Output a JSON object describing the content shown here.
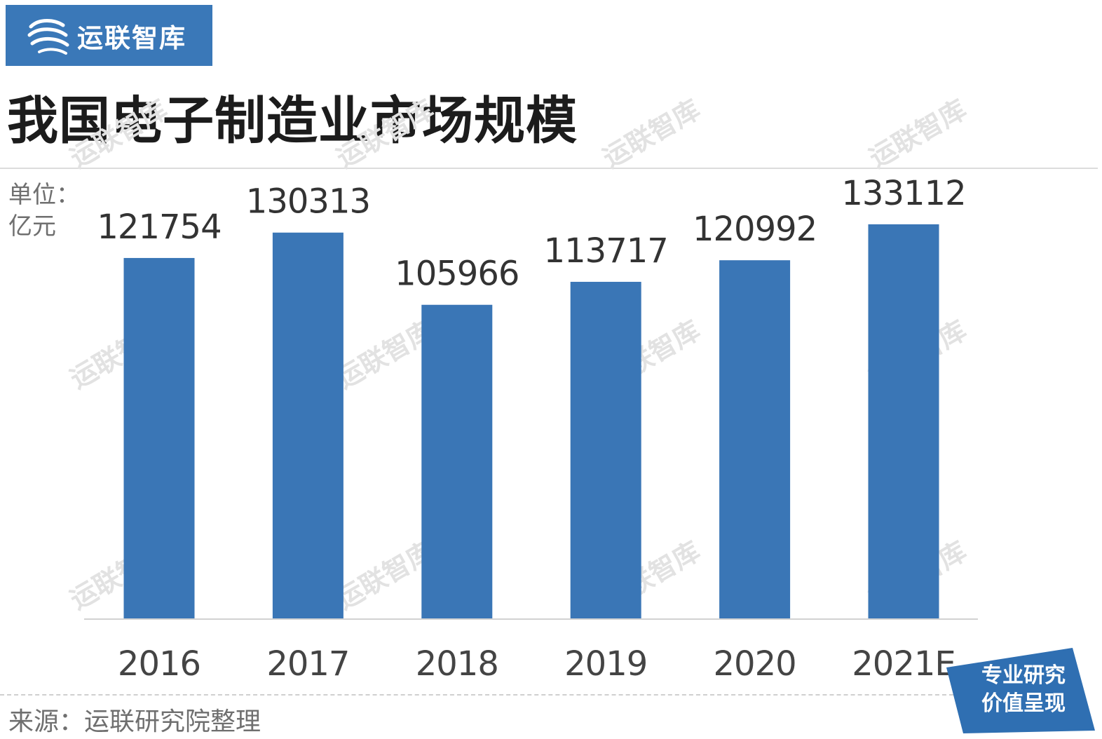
{
  "brand": {
    "name": "运联智库",
    "logo_icon": "swirl-logo-icon",
    "color": "#3a78b8"
  },
  "title": "我国电子制造业市场规模",
  "unit_label": "单位：亿元",
  "source_text": "来源：运联研究院整理",
  "watermark_text": "运联智库",
  "badge": {
    "line1": "专业研究",
    "line2": "价值呈现",
    "color": "#2f6fb2"
  },
  "chart_data": {
    "type": "bar",
    "title": "我国电子制造业市场规模",
    "categories": [
      "2016",
      "2017",
      "2018",
      "2019",
      "2020",
      "2021E"
    ],
    "series": [
      {
        "values": [
          121754,
          130313,
          105966,
          113717,
          120992,
          133112
        ]
      }
    ],
    "value_labels": [
      "121754",
      "130313",
      "105966",
      "113717",
      "120992",
      "133112"
    ],
    "ylim": [
      0,
      152000
    ],
    "bar_color": "#3a76b6",
    "grid": false,
    "legend": "none",
    "xlabel": "",
    "ylabel": ""
  }
}
